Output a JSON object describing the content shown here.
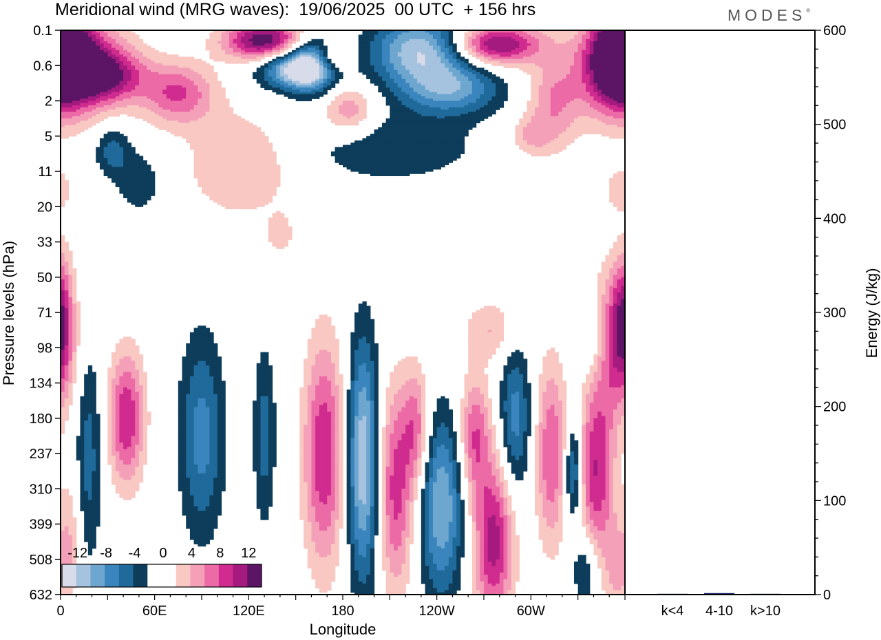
{
  "title": "Meridional wind (MRG waves):  19/06/2025  00 UTC  + 156 hrs",
  "brand": "MODES",
  "brand_mark": "®",
  "colors": {
    "neg": [
      "#0d3d5a",
      "#1f6a9a",
      "#3a85bd",
      "#6da6cf",
      "#a5c2de",
      "#d8dbe9"
    ],
    "pos": [
      "#f9c8c3",
      "#f4a0b8",
      "#ec6aa6",
      "#d02b8e",
      "#a41a7f",
      "#5c1465"
    ],
    "zero": "#ffffff"
  },
  "chart_data": [
    {
      "type": "heatmap",
      "title": "Meridional wind (MRG waves):  19/06/2025  00 UTC  + 156 hrs",
      "xlabel": "Longitude",
      "ylabel": "Pressure levels (hPa)",
      "x_ticks": [
        "0",
        "60E",
        "120E",
        "180",
        "120W",
        "60W"
      ],
      "x_tick_values": [
        0,
        60,
        120,
        180,
        240,
        300
      ],
      "xlim": [
        0,
        360
      ],
      "y_ticks": [
        "0.1",
        "0.6",
        "2",
        "5",
        "11",
        "20",
        "33",
        "50",
        "71",
        "98",
        "134",
        "180",
        "237",
        "310",
        "399",
        "508",
        "632"
      ],
      "colorbar": {
        "labels": [
          "-12",
          "-8",
          "-4",
          "0",
          "4",
          "8",
          "12"
        ],
        "levels": [
          -14,
          -12,
          -10,
          -8,
          -6,
          -4,
          -2,
          2,
          4,
          6,
          8,
          10,
          12,
          14
        ]
      },
      "features": [
        {
          "lon": 12,
          "level": 1.0,
          "wlon": 22,
          "wlev": 0.9,
          "value": 10
        },
        {
          "lon": 30,
          "level": 1.3,
          "wlon": 18,
          "wlev": 0.5,
          "value": 8
        },
        {
          "lon": 75,
          "level": 1.8,
          "wlon": 16,
          "wlev": 0.6,
          "value": 8
        },
        {
          "lon": 0,
          "level": 0.4,
          "wlon": 12,
          "wlev": 0.7,
          "value": 9
        },
        {
          "lon": 130,
          "level": 0.3,
          "wlon": 18,
          "wlev": 0.4,
          "value": 14
        },
        {
          "lon": 150,
          "level": 1.1,
          "wlon": 16,
          "wlev": 0.4,
          "value": -13
        },
        {
          "lon": 160,
          "level": 0.9,
          "wlon": 10,
          "wlev": 0.6,
          "value": -8
        },
        {
          "lon": 172,
          "level": 0.8,
          "wlon": 8,
          "wlev": 0.3,
          "value": 6
        },
        {
          "lon": 184,
          "level": 2.3,
          "wlon": 12,
          "wlev": 0.5,
          "value": 6
        },
        {
          "lon": 230,
          "level": 0.6,
          "wlon": 22,
          "wlev": 0.7,
          "value": -12
        },
        {
          "lon": 250,
          "level": 1.7,
          "wlon": 22,
          "wlev": 0.5,
          "value": -8
        },
        {
          "lon": 210,
          "level": 3.3,
          "wlon": 40,
          "wlev": 0.7,
          "value": -4
        },
        {
          "lon": 278,
          "level": 0.4,
          "wlon": 20,
          "wlev": 0.4,
          "value": 13
        },
        {
          "lon": 315,
          "level": 2.0,
          "wlon": 12,
          "wlev": 0.9,
          "value": 6
        },
        {
          "lon": 355,
          "level": 1.0,
          "wlon": 16,
          "wlev": 1.0,
          "value": 12
        },
        {
          "lon": 33,
          "level": 3.4,
          "wlon": 8,
          "wlev": 0.5,
          "value": -5
        },
        {
          "lon": 50,
          "level": 4.3,
          "wlon": 10,
          "wlev": 0.6,
          "value": -4
        },
        {
          "lon": 115,
          "level": 3.8,
          "wlon": 26,
          "wlev": 1.1,
          "value": 4
        },
        {
          "lon": 300,
          "level": 3.0,
          "wlon": 10,
          "wlev": 0.4,
          "value": 4
        },
        {
          "lon": 357,
          "level": 4.5,
          "wlon": 8,
          "wlev": 0.5,
          "value": 3
        },
        {
          "lon": 0,
          "level": 8.0,
          "wlon": 5,
          "wlev": 1.2,
          "value": 6
        },
        {
          "lon": 140,
          "level": 5.8,
          "wlon": 6,
          "wlev": 0.4,
          "value": 3
        },
        {
          "lon": 355,
          "level": 8.8,
          "wlon": 10,
          "wlev": 1.4,
          "value": 10
        },
        {
          "lon": 340,
          "level": 8.8,
          "wlon": 8,
          "wlev": 0.8,
          "value": -4
        },
        {
          "lon": 275,
          "level": 8.5,
          "wlon": 12,
          "wlev": 0.6,
          "value": 4
        },
        {
          "lon": 42,
          "level": 11.0,
          "wlon": 8,
          "wlev": 1.3,
          "value": 10
        },
        {
          "lon": 18,
          "level": 12.0,
          "wlon": 6,
          "wlev": 2.2,
          "value": -5
        },
        {
          "lon": 90,
          "level": 11.5,
          "wlon": 10,
          "wlev": 2.0,
          "value": -7
        },
        {
          "lon": 130,
          "level": 11.5,
          "wlon": 5,
          "wlev": 1.8,
          "value": -5
        },
        {
          "lon": 168,
          "level": 12.0,
          "wlon": 9,
          "wlev": 2.2,
          "value": 10
        },
        {
          "lon": 193,
          "level": 12.2,
          "wlon": 7,
          "wlev": 2.4,
          "value": -12
        },
        {
          "lon": 214,
          "level": 13.0,
          "wlon": 8,
          "wlev": 2.0,
          "value": 9
        },
        {
          "lon": 227,
          "level": 11.3,
          "wlon": 6,
          "wlev": 1.2,
          "value": 7
        },
        {
          "lon": 243,
          "level": 13.5,
          "wlon": 10,
          "wlev": 1.8,
          "value": -10
        },
        {
          "lon": 264,
          "level": 11.5,
          "wlon": 7,
          "wlev": 1.2,
          "value": 8
        },
        {
          "lon": 276,
          "level": 14.5,
          "wlon": 9,
          "wlev": 1.6,
          "value": 11
        },
        {
          "lon": 290,
          "level": 11.0,
          "wlon": 7,
          "wlev": 1.5,
          "value": -7
        },
        {
          "lon": 313,
          "level": 12.0,
          "wlon": 7,
          "wlev": 1.8,
          "value": 8
        },
        {
          "lon": 327,
          "level": 12.5,
          "wlon": 4,
          "wlev": 1.0,
          "value": -8
        },
        {
          "lon": 342,
          "level": 12.5,
          "wlon": 8,
          "wlev": 1.8,
          "value": 10
        },
        {
          "lon": 6,
          "level": 14.5,
          "wlon": 5,
          "wlev": 1.3,
          "value": 4
        },
        {
          "lon": 335,
          "level": 15.3,
          "wlon": 6,
          "wlev": 0.8,
          "value": -5
        },
        {
          "lon": 355,
          "level": 15.3,
          "wlon": 6,
          "wlev": 1.0,
          "value": 4
        }
      ]
    },
    {
      "type": "bar",
      "categories": [
        "k<4",
        "4-10",
        "k>10"
      ],
      "values": [
        0.4,
        1.6,
        0.2
      ],
      "ylabel": "Energy (J/kg)",
      "ylim": [
        0,
        600
      ],
      "y_ticks": [
        "0",
        "100",
        "200",
        "300",
        "400",
        "500",
        "600"
      ],
      "bar_color": "#1b2a6b"
    }
  ]
}
